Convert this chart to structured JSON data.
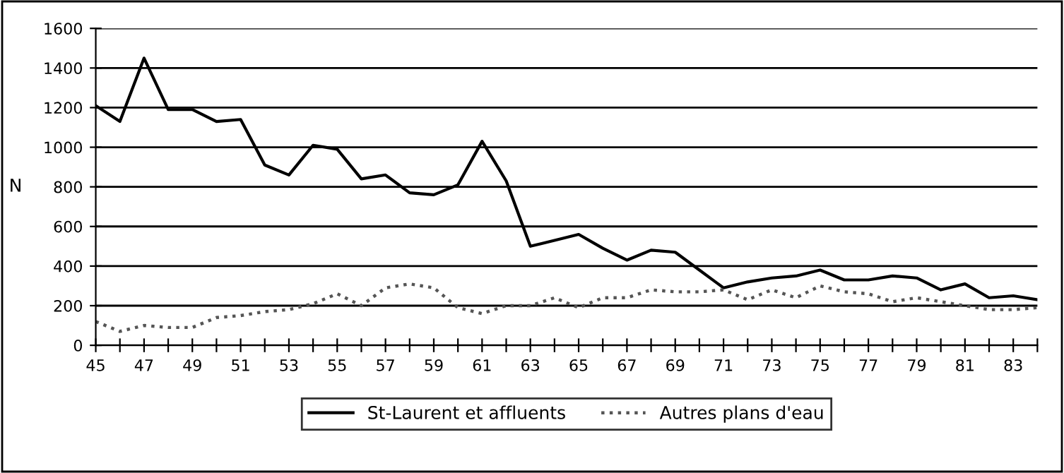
{
  "chart_data": {
    "type": "line",
    "ylabel": "N",
    "x": [
      45,
      46,
      47,
      48,
      49,
      50,
      51,
      52,
      53,
      54,
      55,
      56,
      57,
      58,
      59,
      60,
      61,
      62,
      63,
      64,
      65,
      66,
      67,
      68,
      69,
      70,
      71,
      72,
      73,
      74,
      75,
      76,
      77,
      78,
      79,
      80,
      81,
      82,
      83,
      84
    ],
    "series": [
      {
        "name": "St-Laurent et affluents",
        "color": "#000000",
        "line_style": "solid",
        "values": [
          1210,
          1130,
          1450,
          1190,
          1190,
          1130,
          1140,
          910,
          860,
          1010,
          990,
          840,
          860,
          770,
          760,
          810,
          1030,
          830,
          500,
          530,
          560,
          490,
          430,
          480,
          470,
          380,
          290,
          320,
          340,
          350,
          380,
          330,
          330,
          350,
          340,
          280,
          310,
          240,
          250,
          230
        ]
      },
      {
        "name": "Autres plans d'eau",
        "color": "#555555",
        "line_style": "dotted",
        "values": [
          120,
          70,
          100,
          90,
          90,
          140,
          150,
          170,
          180,
          210,
          260,
          200,
          290,
          310,
          290,
          190,
          160,
          200,
          200,
          240,
          190,
          240,
          240,
          280,
          270,
          270,
          280,
          230,
          280,
          240,
          300,
          270,
          260,
          220,
          240,
          220,
          200,
          180,
          180,
          190
        ]
      }
    ],
    "xlim": [
      45,
      84
    ],
    "xticks": [
      45,
      {
        "value": 46,
        "label": null
      },
      47,
      {
        "value": 48,
        "label": null
      },
      49,
      {
        "value": 50,
        "label": null
      },
      51,
      {
        "value": 52,
        "label": null
      },
      53,
      {
        "value": 54,
        "label": null
      },
      55,
      {
        "value": 56,
        "label": null
      },
      57,
      {
        "value": 58,
        "label": null
      },
      59,
      {
        "value": 60,
        "label": null
      },
      61,
      {
        "value": 62,
        "label": null
      },
      63,
      {
        "value": 64,
        "label": null
      },
      65,
      {
        "value": 66,
        "label": null
      },
      67,
      {
        "value": 68,
        "label": null
      },
      69,
      {
        "value": 70,
        "label": null
      },
      71,
      {
        "value": 72,
        "label": null
      },
      73,
      {
        "value": 74,
        "label": null
      },
      75,
      {
        "value": 76,
        "label": null
      },
      77,
      {
        "value": 78,
        "label": null
      },
      79,
      {
        "value": 80,
        "label": null
      },
      81,
      {
        "value": 82,
        "label": null
      },
      83,
      {
        "value": 84,
        "label": null
      }
    ],
    "ylim": [
      0,
      1600
    ],
    "yticks": [
      0,
      200,
      400,
      600,
      800,
      1000,
      1200,
      1400,
      1600
    ],
    "grid": "y",
    "legend": "bottom",
    "marker": "none"
  }
}
